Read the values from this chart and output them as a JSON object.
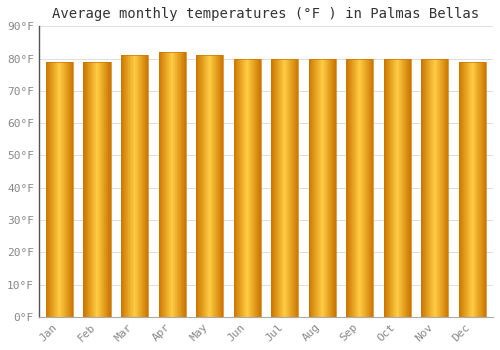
{
  "title": "Average monthly temperatures (°F ) in Palmas Bellas",
  "months": [
    "Jan",
    "Feb",
    "Mar",
    "Apr",
    "May",
    "Jun",
    "Jul",
    "Aug",
    "Sep",
    "Oct",
    "Nov",
    "Dec"
  ],
  "values": [
    79,
    79,
    81,
    82,
    81,
    80,
    80,
    80,
    80,
    80,
    80,
    79
  ],
  "ylim": [
    0,
    90
  ],
  "yticks": [
    0,
    10,
    20,
    30,
    40,
    50,
    60,
    70,
    80,
    90
  ],
  "ytick_labels": [
    "0°F",
    "10°F",
    "20°F",
    "30°F",
    "40°F",
    "50°F",
    "60°F",
    "70°F",
    "80°F",
    "90°F"
  ],
  "bar_color_light": "#FFCC44",
  "bar_color_main": "#FFA500",
  "bar_color_dark": "#CC7700",
  "background_color": "#FFFFFF",
  "grid_color": "#DDDDDD",
  "title_fontsize": 10,
  "tick_fontsize": 8,
  "font_family": "monospace",
  "bar_width": 0.72,
  "left_spine_color": "#555555"
}
